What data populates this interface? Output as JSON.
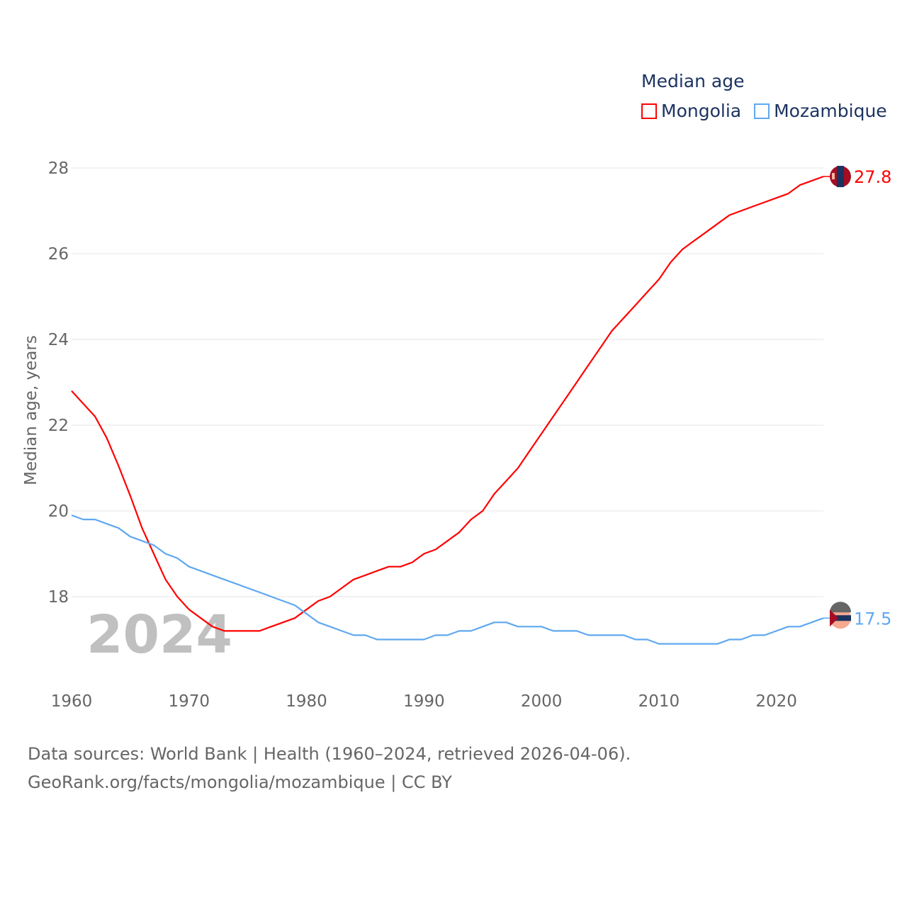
{
  "legend": {
    "title": "Median age",
    "items": [
      "Mongolia",
      "Mozambique"
    ]
  },
  "watermark_year": "2024",
  "footer": {
    "line1": "Data sources: World Bank | Health (1960–2024, retrieved 2026-04-06).",
    "line2": "GeoRank.org/facts/mongolia/mozambique | CC BY"
  },
  "chart_data": {
    "type": "line",
    "title": "Median age",
    "xlabel": "",
    "ylabel": "Median age, years",
    "xlim": [
      1960,
      2024
    ],
    "ylim": [
      16.5,
      28.5
    ],
    "xticks": [
      1960,
      1970,
      1980,
      1990,
      2000,
      2010,
      2020
    ],
    "yticks": [
      18,
      20,
      22,
      24,
      26,
      28
    ],
    "grid": true,
    "legend_position": "top-right",
    "x_start": 1960,
    "series": [
      {
        "name": "Mongolia",
        "color": "#ff0000",
        "end_label": "27.8",
        "values": [
          22.8,
          22.5,
          22.2,
          21.7,
          21.05,
          20.35,
          19.6,
          19.0,
          18.4,
          18.0,
          17.7,
          17.5,
          17.3,
          17.2,
          17.2,
          17.2,
          17.2,
          17.3,
          17.4,
          17.5,
          17.7,
          17.9,
          18.0,
          18.2,
          18.4,
          18.5,
          18.6,
          18.7,
          18.7,
          18.8,
          19.0,
          19.1,
          19.3,
          19.5,
          19.8,
          20.0,
          20.4,
          20.7,
          21.0,
          21.4,
          21.8,
          22.2,
          22.6,
          23.0,
          23.4,
          23.8,
          24.2,
          24.5,
          24.8,
          25.1,
          25.4,
          25.8,
          26.1,
          26.3,
          26.5,
          26.7,
          26.9,
          27.0,
          27.1,
          27.2,
          27.3,
          27.4,
          27.6,
          27.7,
          27.8
        ]
      },
      {
        "name": "Mozambique",
        "color": "#5fa8f0",
        "end_label": "17.5",
        "values": [
          19.9,
          19.8,
          19.8,
          19.7,
          19.6,
          19.4,
          19.3,
          19.2,
          19.0,
          18.9,
          18.7,
          18.6,
          18.5,
          18.4,
          18.3,
          18.2,
          18.1,
          18.0,
          17.9,
          17.8,
          17.6,
          17.4,
          17.3,
          17.2,
          17.1,
          17.1,
          17.0,
          17.0,
          17.0,
          17.0,
          17.0,
          17.1,
          17.1,
          17.2,
          17.2,
          17.3,
          17.4,
          17.4,
          17.3,
          17.3,
          17.3,
          17.2,
          17.2,
          17.2,
          17.1,
          17.1,
          17.1,
          17.1,
          17.0,
          17.0,
          16.9,
          16.9,
          16.9,
          16.9,
          16.9,
          16.9,
          17.0,
          17.0,
          17.1,
          17.1,
          17.2,
          17.3,
          17.3,
          17.4,
          17.5
        ]
      }
    ]
  }
}
